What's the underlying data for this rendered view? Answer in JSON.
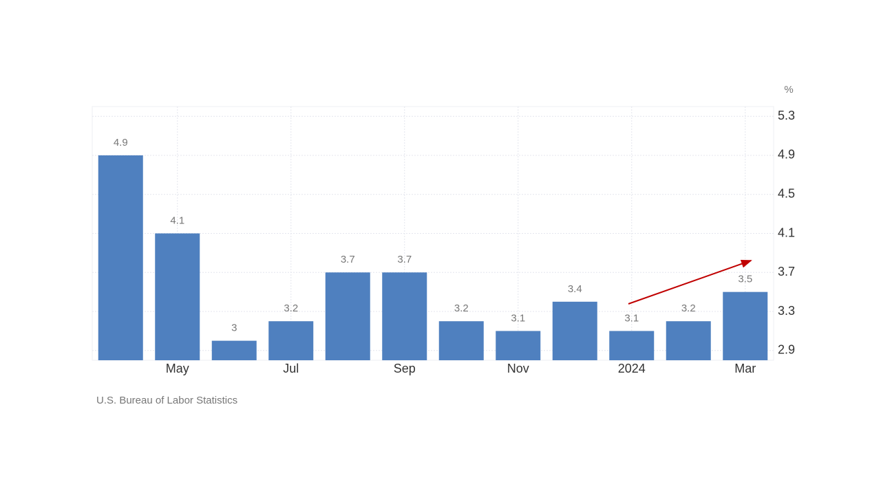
{
  "chart_data": {
    "type": "bar",
    "categories": [
      null,
      "May",
      null,
      "Jul",
      null,
      "Sep",
      null,
      "Nov",
      null,
      "2024",
      null,
      "Mar"
    ],
    "values": [
      4.9,
      4.1,
      3,
      3.2,
      3.7,
      3.7,
      3.2,
      3.1,
      3.4,
      3.1,
      3.2,
      3.5
    ],
    "color": "#4f80bf",
    "y_unit": "%",
    "ylim": [
      2.8,
      5.4
    ],
    "yticks": [
      2.9,
      3.3,
      3.7,
      4.1,
      4.5,
      4.9,
      5.3
    ],
    "grid": true,
    "source": "U.S. Bureau of Labor Statistics"
  }
}
